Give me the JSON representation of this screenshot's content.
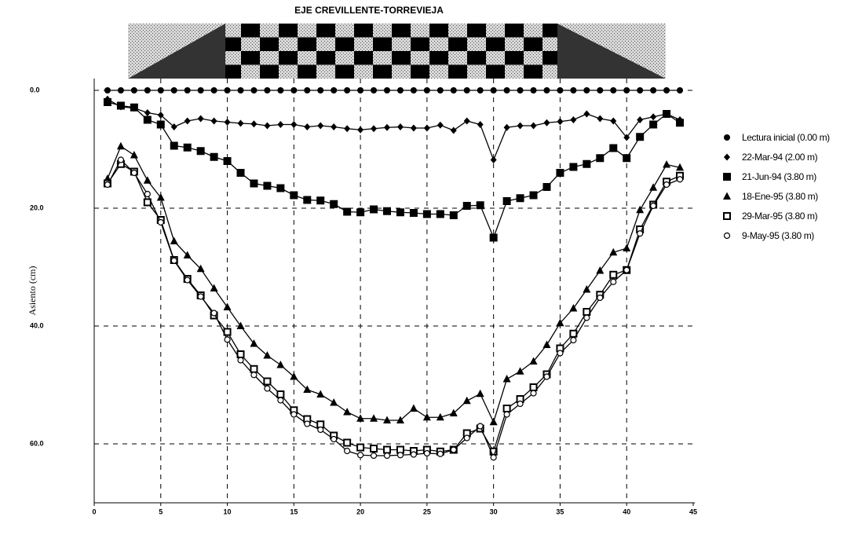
{
  "chart_data": {
    "type": "line",
    "title": "EJE CREVILLENTE-TORREVIEJA",
    "y_label": "Asiento (cm)",
    "x": [
      1,
      2,
      3,
      4,
      5,
      6,
      7,
      8,
      9,
      10,
      11,
      12,
      13,
      14,
      15,
      16,
      17,
      18,
      19,
      20,
      21,
      22,
      23,
      24,
      25,
      26,
      27,
      28,
      29,
      30,
      31,
      32,
      33,
      34,
      35,
      36,
      37,
      38,
      39,
      40,
      41,
      42,
      43,
      44
    ],
    "xlim": [
      0,
      45
    ],
    "xticks": [
      0,
      5,
      10,
      15,
      20,
      25,
      30,
      35,
      40,
      45
    ],
    "ylim": [
      70,
      -2
    ],
    "yticks": [
      {
        "value": 0,
        "label": "0.0"
      },
      {
        "value": 20,
        "label": "20.0"
      },
      {
        "value": 40,
        "label": "40.0"
      },
      {
        "value": 60,
        "label": "60.0"
      }
    ],
    "grid": true,
    "legend": "right",
    "series": [
      {
        "name": "Lectura inicial (0.00 m)",
        "color": "#000000",
        "marker": "circle",
        "values": [
          0,
          0,
          0,
          0,
          0,
          0,
          0,
          0,
          0,
          0,
          0,
          0,
          0,
          0,
          0,
          0,
          0,
          0,
          0,
          0,
          0,
          0,
          0,
          0,
          0,
          0,
          0,
          0,
          0,
          0,
          0,
          0,
          0,
          0,
          0,
          0,
          0,
          0,
          0,
          0,
          0,
          0,
          0,
          0
        ]
      },
      {
        "name": "22-Mar-94 (2.00 m)",
        "color": "#000000",
        "marker": "diamond",
        "values": [
          1.5,
          2.8,
          3,
          3.8,
          4.2,
          6.2,
          5.2,
          4.8,
          5.2,
          5.4,
          5.6,
          5.7,
          6,
          5.8,
          5.8,
          6.2,
          6,
          6.2,
          6.5,
          6.7,
          6.5,
          6.3,
          6.2,
          6.4,
          6.4,
          5.9,
          6.8,
          5.2,
          5.8,
          11.8,
          6.3,
          6,
          6,
          5.5,
          5.3,
          5,
          4,
          4.8,
          5.2,
          8,
          5,
          4.5,
          4,
          5
        ]
      },
      {
        "name": "21-Jun-94 (3.80 m)",
        "color": "#000000",
        "marker": "square",
        "values": [
          2,
          2.6,
          2.9,
          5,
          5.8,
          9.4,
          9.7,
          10.3,
          11.3,
          12,
          14,
          15.8,
          16.2,
          16.6,
          17.8,
          18.6,
          18.7,
          19.3,
          20.6,
          20.7,
          20.2,
          20.5,
          20.7,
          20.8,
          21,
          21,
          21.2,
          19.6,
          19.5,
          25,
          18.8,
          18.3,
          17.8,
          16.4,
          14,
          13,
          12.5,
          11.5,
          9.8,
          11.5,
          7.9,
          5.8,
          4,
          5.5
        ]
      },
      {
        "name": "18-Ene-95 (3.80 m)",
        "color": "#000000",
        "marker": "triangle",
        "values": [
          15,
          9.5,
          11,
          15.3,
          18.2,
          25.6,
          28,
          30.3,
          33.6,
          36.8,
          40,
          43,
          45,
          46.6,
          48.6,
          50.8,
          51.6,
          53,
          54.6,
          55.7,
          55.7,
          56,
          56,
          54,
          55.5,
          55.5,
          54.8,
          52.7,
          51.5,
          56.3,
          49,
          47.7,
          46,
          43.2,
          39.5,
          37,
          33.8,
          30.6,
          27.5,
          26.8,
          20.3,
          16.5,
          12.6,
          13.1
        ]
      },
      {
        "name": "29-Mar-95 (3.80 m)",
        "color": "#000000",
        "marker": "open-square",
        "values": [
          15.8,
          12.5,
          13.8,
          19,
          22,
          28.8,
          32,
          34.8,
          38.2,
          41,
          44.8,
          47.3,
          49.4,
          51.6,
          54.3,
          55.8,
          56.7,
          58.6,
          59.8,
          60.6,
          60.8,
          61,
          61,
          61.2,
          61,
          61.3,
          61,
          58.2,
          57.4,
          61.3,
          54,
          52.4,
          50.4,
          48.2,
          43.8,
          41.3,
          37.6,
          34.7,
          31.3,
          30.5,
          23.6,
          19.4,
          15.5,
          14.5
        ]
      },
      {
        "name": "9-May-95 (3.80 m)",
        "color": "#000000",
        "marker": "open-circle",
        "values": [
          16,
          11.8,
          14,
          17.6,
          22.4,
          28.9,
          32.2,
          35,
          37.8,
          42.3,
          45.8,
          48.3,
          50.6,
          52.6,
          55,
          56.6,
          57.6,
          59.2,
          61.2,
          61.9,
          62,
          62,
          61.9,
          61.8,
          61.6,
          61.7,
          61,
          59,
          57,
          62.3,
          55,
          53.2,
          51.4,
          48.6,
          44.6,
          42.4,
          38.6,
          35.2,
          32.5,
          30.5,
          24.3,
          19.6,
          16,
          15.1
        ]
      }
    ]
  }
}
